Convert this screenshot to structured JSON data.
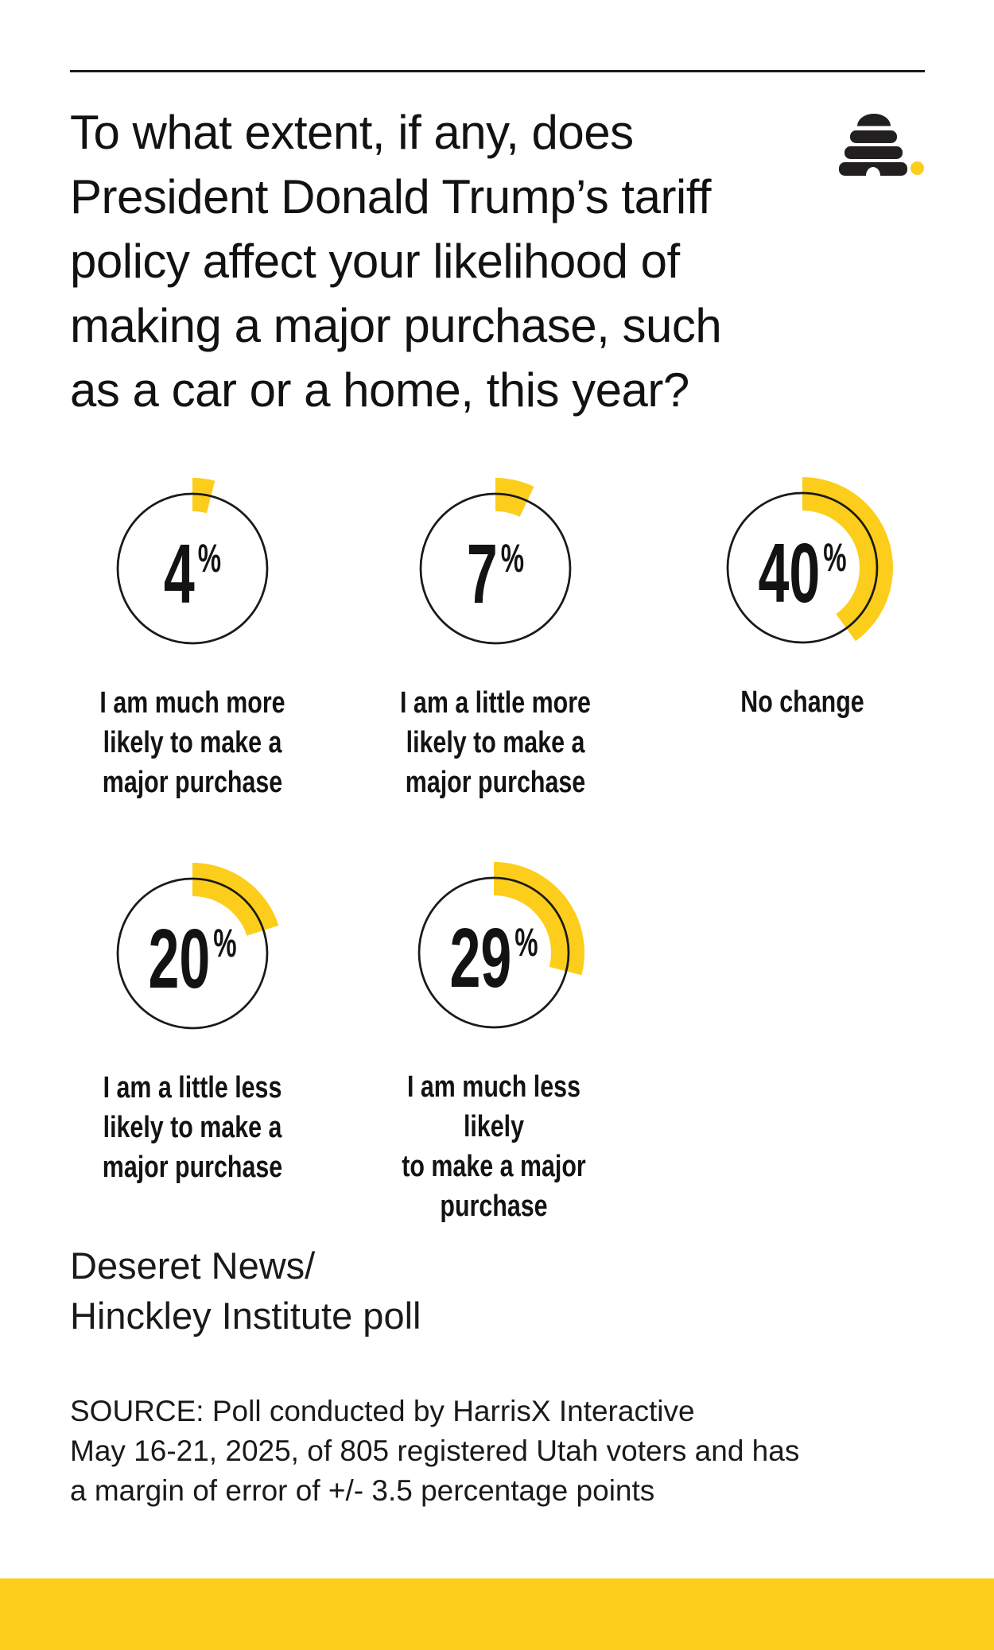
{
  "page": {
    "background": "#ffffff",
    "accent_yellow": "#FCCE1B",
    "ink": "#131313"
  },
  "header": {
    "title_lines": [
      "To what extent, if any, does",
      "President Donald Trump’s tariff",
      "policy affect your likelihood of",
      "making a major purchase, such",
      "as a car or a home, this year?"
    ],
    "logo_name": "Deseret News beehive mark"
  },
  "chart_data": {
    "type": "pie",
    "variant": "gauge-donut-grid",
    "title": "To what extent, if any, does President Donald Trump’s tariff policy affect your likelihood of making a major purchase, such as a car or a home, this year?",
    "units": "%",
    "gauge_max": 100,
    "accent_color": "#FCCE1B",
    "legend_position": "below-each-gauge",
    "series": [
      {
        "label": "I am much more likely to make a major purchase",
        "value": 4,
        "label_lines": [
          "I am much more",
          "likely to make a",
          "major purchase"
        ]
      },
      {
        "label": "I am a little more likely to make a major purchase",
        "value": 7,
        "label_lines": [
          "I am a little more",
          "likely to make a",
          "major purchase"
        ]
      },
      {
        "label": "No change",
        "value": 40,
        "label_lines": [
          "No change"
        ]
      },
      {
        "label": "I am a little less likely to make a major purchase",
        "value": 20,
        "label_lines": [
          "I am a little less",
          "likely to make a",
          "major purchase"
        ]
      },
      {
        "label": "I am much less likely to make a major purchase",
        "value": 29,
        "label_lines": [
          "I am much less likely",
          "to make a major",
          "purchase"
        ]
      }
    ]
  },
  "attribution": {
    "line1": "Deseret News/",
    "line2": "Hinckley Institute poll"
  },
  "source": {
    "lines": [
      "SOURCE: Poll conducted by HarrisX Interactive",
      "May 16-21, 2025, of 805 registered Utah voters and has",
      "a margin of error of +/- 3.5 percentage points"
    ]
  }
}
